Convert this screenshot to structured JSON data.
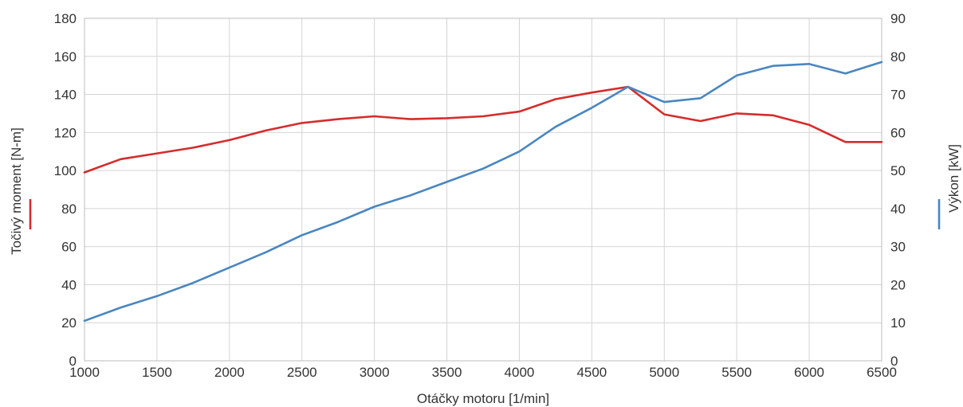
{
  "chart_data": {
    "type": "line",
    "xlabel": "Otáčky motoru [1/min]",
    "ylabel": "Točivý moment [N-m]",
    "y2label": "Výkon [kW]",
    "xlim": [
      1000,
      6500
    ],
    "ylim": [
      0,
      180
    ],
    "y2lim": [
      0,
      90
    ],
    "x_ticks": [
      1000,
      1500,
      2000,
      2500,
      3000,
      3500,
      4000,
      4500,
      5000,
      5500,
      6000,
      6500
    ],
    "y_ticks": [
      0,
      20,
      40,
      60,
      80,
      100,
      120,
      140,
      160,
      180
    ],
    "y2_ticks": [
      0,
      10,
      20,
      30,
      40,
      50,
      60,
      70,
      80,
      90
    ],
    "grid": true,
    "series": [
      {
        "axis": "left",
        "color": "#d62c2c",
        "x": [
          1000,
          1250,
          1500,
          1750,
          2000,
          2250,
          2500,
          2750,
          3000,
          3250,
          3500,
          3750,
          4000,
          4250,
          4500,
          4750,
          5000,
          5250,
          5500,
          5750,
          6000,
          6250,
          6500
        ],
        "values": [
          99,
          106,
          109,
          112,
          116,
          121,
          125,
          127,
          128.5,
          127,
          127.5,
          128.5,
          131,
          137.5,
          141,
          144,
          129.5,
          126,
          130,
          129,
          124,
          115,
          115
        ]
      },
      {
        "axis": "right",
        "color": "#4a86c0",
        "x": [
          1000,
          1250,
          1500,
          1750,
          2000,
          2250,
          2500,
          2750,
          3000,
          3250,
          3500,
          3750,
          4000,
          4250,
          4500,
          4750,
          5000,
          5250,
          5500,
          5750,
          6000,
          6250,
          6500
        ],
        "values": [
          10.5,
          14,
          17,
          20.5,
          24.5,
          28.5,
          33,
          36.5,
          40.5,
          43.5,
          47,
          50.5,
          55,
          61.5,
          66.5,
          72,
          68,
          69,
          75,
          77.5,
          78,
          75.5,
          78.5
        ]
      }
    ]
  }
}
